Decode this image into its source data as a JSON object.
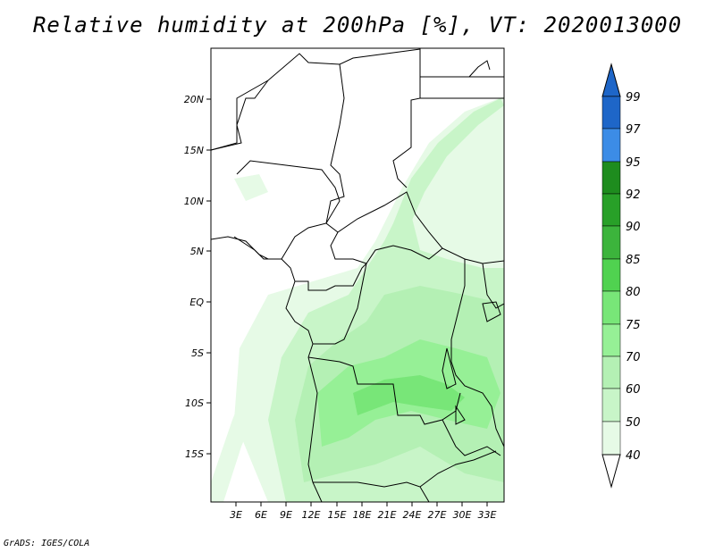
{
  "title": "Relative humidity at 200hPa [%], VT: 2020013000",
  "credit": "GrADS: IGES/COLA",
  "map": {
    "lat_labels": [
      "20N",
      "15N",
      "10N",
      "5N",
      "EQ",
      "5S",
      "10S",
      "15S"
    ],
    "lon_labels": [
      "3E",
      "6E",
      "9E",
      "12E",
      "15E",
      "18E",
      "21E",
      "24E",
      "27E",
      "30E",
      "33E"
    ],
    "lat_range": [
      -20,
      25
    ],
    "lon_range": [
      0,
      35
    ]
  },
  "colorbar": {
    "levels": [
      "99",
      "97",
      "95",
      "92",
      "90",
      "85",
      "80",
      "75",
      "70",
      "60",
      "50",
      "40"
    ],
    "colors": {
      "99": "#1e66c8",
      "97": "#3c8ce6",
      "95": "#1e8c1e",
      "92": "#28a028",
      "90": "#3cb43c",
      "85": "#50d250",
      "80": "#78e678",
      "75": "#96f096",
      "70": "#b4f0b4",
      "60": "#c8f5c8",
      "50": "#e6fae6",
      "40": "#ffffff"
    }
  }
}
